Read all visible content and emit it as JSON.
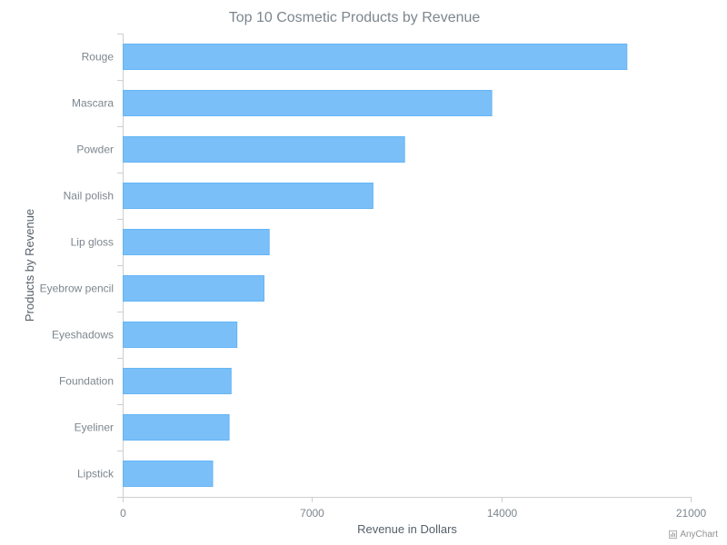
{
  "chart_data": {
    "type": "bar",
    "orientation": "horizontal",
    "title": "Top 10 Cosmetic Products by Revenue",
    "xlabel": "Revenue in Dollars",
    "ylabel": "Products by Revenue",
    "categories": [
      "Rouge",
      "Mascara",
      "Powder",
      "Nail polish",
      "Lip gloss",
      "Eyebrow pencil",
      "Eyeshadows",
      "Foundation",
      "Eyeliner",
      "Lipstick"
    ],
    "values": [
      18623,
      13627,
      10407,
      9236,
      5399,
      5208,
      4208,
      3993,
      3919,
      3309
    ],
    "xlim": [
      0,
      21000
    ],
    "xticks": [
      "0",
      "7000",
      "14000",
      "21000"
    ],
    "grid": false,
    "legend": "none",
    "colors": {
      "bar_fill": "#7bbff8",
      "bar_stroke": "#64b5f6"
    }
  },
  "credits": {
    "label": "AnyChart"
  }
}
